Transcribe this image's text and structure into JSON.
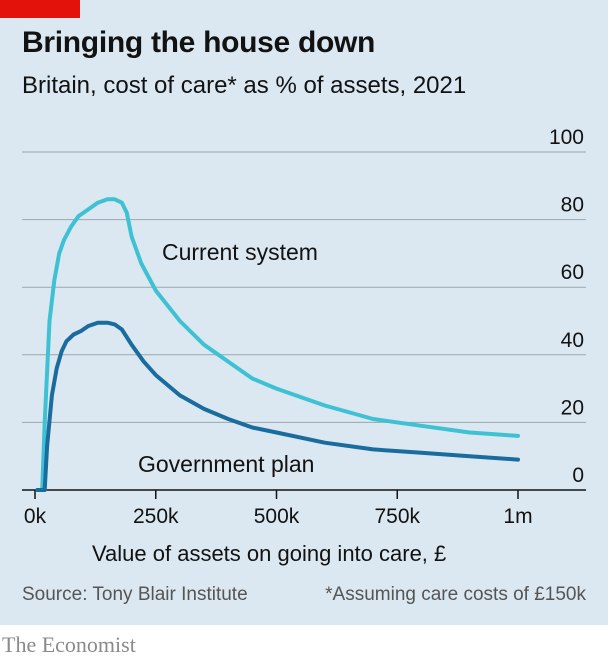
{
  "header": {
    "title": "Bringing the house down",
    "subtitle": "Britain, cost of care* as % of assets, 2021"
  },
  "footer": {
    "source": "Source: Tony Blair Institute",
    "footnote": "*Assuming care costs of £150k",
    "brand": "The Economist"
  },
  "colors": {
    "background": "#dbe8f1",
    "accent_red": "#e3120b",
    "current_system": "#3ec1d3",
    "government_plan": "#1a6b9e",
    "grid": "#9ba6ae",
    "axis": "#121212"
  },
  "chart_data": {
    "type": "line",
    "title": "Bringing the house down",
    "subtitle": "Britain, cost of care* as % of assets, 2021",
    "xlabel": "Value of assets on going into care, £",
    "ylabel": "",
    "xlim": [
      0,
      1000000
    ],
    "ylim": [
      0,
      100
    ],
    "x_ticks": [
      0,
      250000,
      500000,
      750000,
      1000000
    ],
    "x_tick_labels": [
      "0k",
      "250k",
      "500k",
      "750k",
      "1m"
    ],
    "y_ticks": [
      0,
      20,
      40,
      60,
      80,
      100
    ],
    "y_tick_labels": [
      "0",
      "20",
      "40",
      "60",
      "80",
      "100"
    ],
    "y_axis_side": "right",
    "grid": true,
    "legend": "inline labels",
    "series": [
      {
        "name": "Current system",
        "x": [
          5000,
          15000,
          20000,
          30000,
          40000,
          50000,
          60000,
          75000,
          90000,
          110000,
          130000,
          150000,
          165000,
          180000,
          190000,
          200000,
          220000,
          250000,
          300000,
          350000,
          400000,
          450000,
          500000,
          600000,
          700000,
          800000,
          900000,
          1000000
        ],
        "y": [
          0,
          0,
          20,
          50,
          62,
          70,
          74,
          78,
          81,
          83,
          85,
          86,
          86,
          85,
          82,
          75,
          67,
          59,
          50,
          43,
          38,
          33,
          30,
          25,
          21,
          19,
          17,
          16
        ]
      },
      {
        "name": "Government plan",
        "x": [
          5000,
          20000,
          25000,
          35000,
          45000,
          55000,
          65000,
          80000,
          95000,
          110000,
          130000,
          150000,
          165000,
          180000,
          200000,
          225000,
          250000,
          300000,
          350000,
          400000,
          450000,
          500000,
          600000,
          700000,
          800000,
          900000,
          1000000
        ],
        "y": [
          0,
          0,
          13,
          28,
          36,
          41,
          44,
          46,
          47,
          48.5,
          49.5,
          49.5,
          49,
          47.5,
          43,
          38,
          34,
          28,
          24,
          21,
          18.5,
          17,
          14,
          12,
          11,
          10,
          9
        ]
      }
    ],
    "annotations": [
      {
        "text": "Current system",
        "series": "Current system"
      },
      {
        "text": "Government plan",
        "series": "Government plan"
      }
    ]
  }
}
